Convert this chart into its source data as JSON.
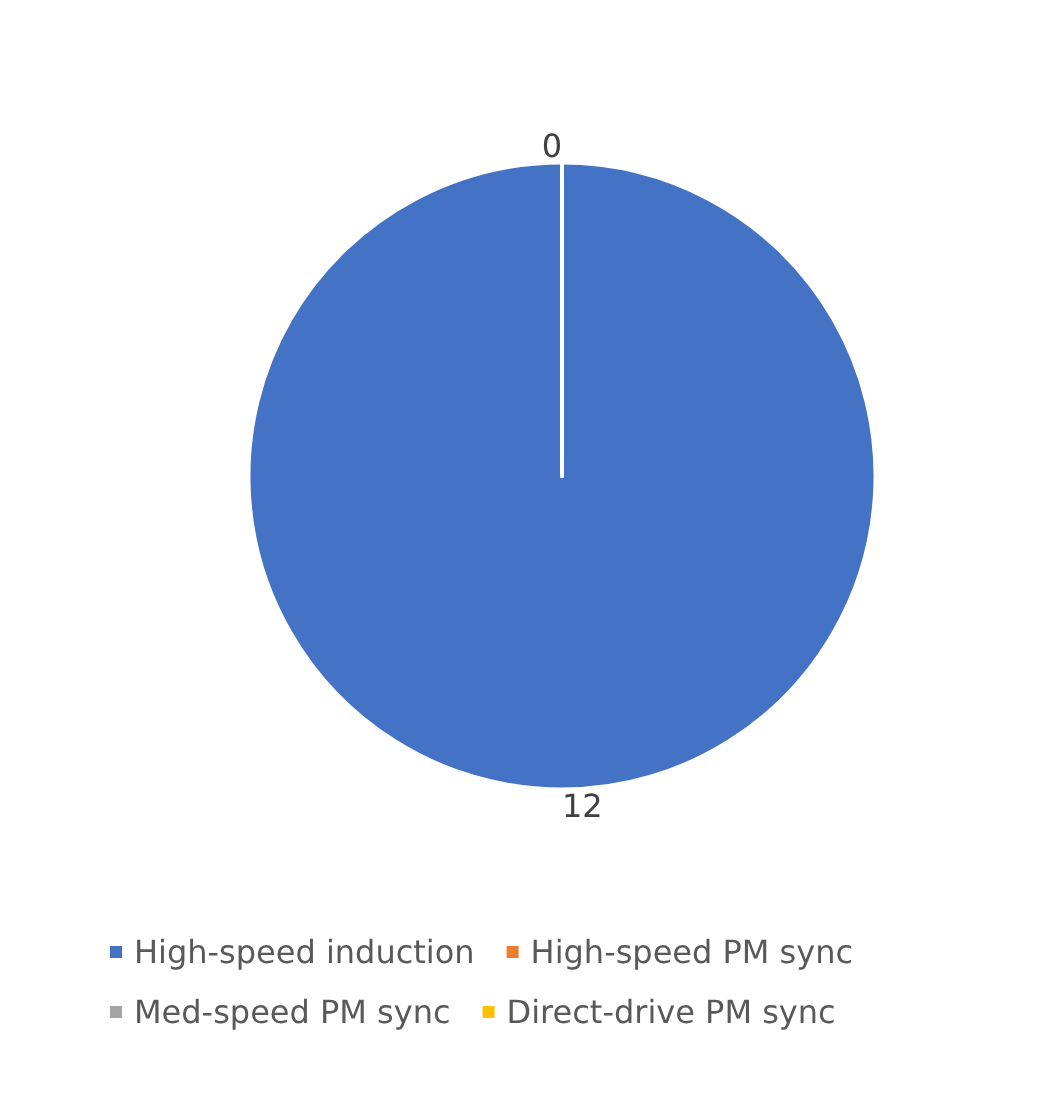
{
  "chart_data": {
    "type": "pie",
    "categories": [
      "High-speed induction",
      "High-speed PM sync",
      "Med-speed PM sync",
      "Direct-drive PM sync"
    ],
    "values": [
      12,
      0,
      0,
      0
    ],
    "colors": [
      "#4472c4",
      "#ed7d31",
      "#a5a5a5",
      "#ffc000"
    ],
    "value_labels": [
      "12",
      "0",
      null,
      null
    ],
    "legend": "bottom"
  }
}
